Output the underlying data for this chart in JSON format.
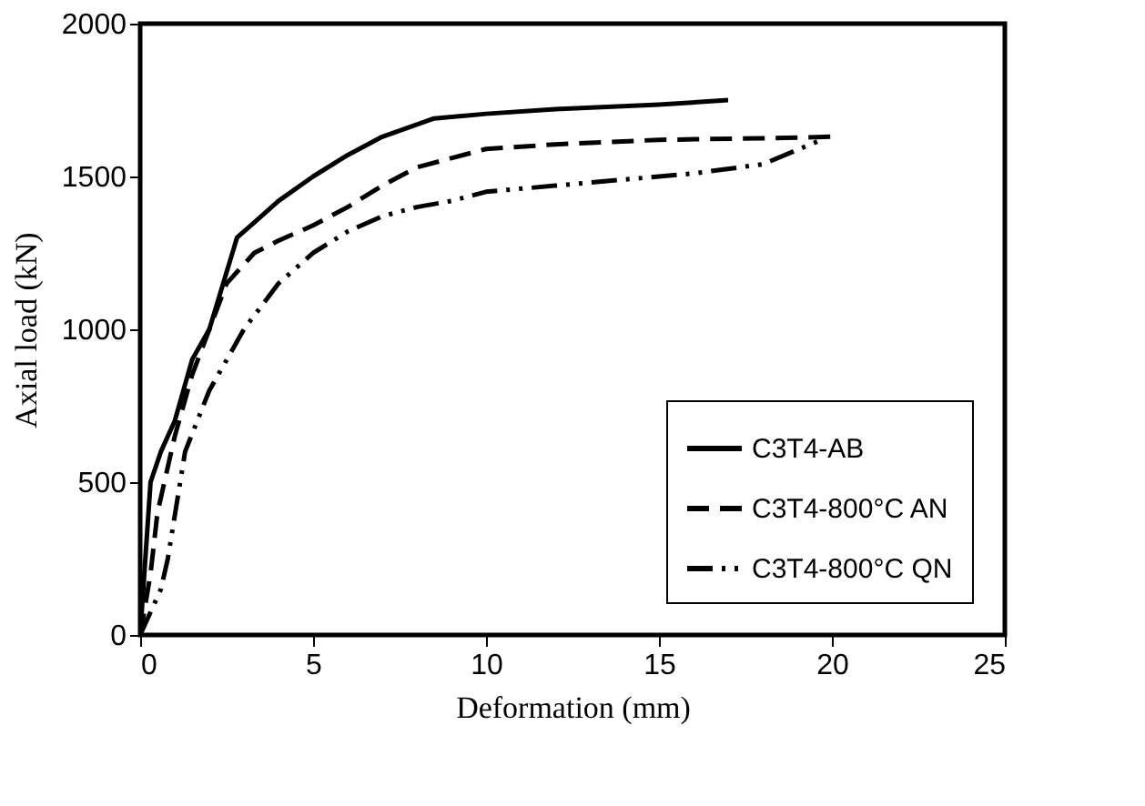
{
  "chart_data": {
    "type": "line",
    "xlabel": "Deformation (mm)",
    "ylabel": "Axial load (kN)",
    "xlim": [
      0,
      25
    ],
    "xticks": [
      0,
      5,
      10,
      15,
      20,
      25
    ],
    "ylim": [
      0,
      2000
    ],
    "yticks": [
      0,
      500,
      1000,
      1500,
      2000
    ],
    "grid": false,
    "legend": "bottom right",
    "marker": "none",
    "series": [
      {
        "name": "C3T4-AB",
        "color": "#000000",
        "line_style": "solid",
        "x": [
          0,
          0.15,
          0.3,
          0.6,
          1,
          1.5,
          2,
          2.8,
          3.2,
          4,
          5,
          6,
          7,
          8.5,
          10,
          12,
          15,
          17
        ],
        "values": [
          0,
          250,
          500,
          600,
          700,
          900,
          1000,
          1300,
          1340,
          1420,
          1500,
          1570,
          1630,
          1690,
          1705,
          1720,
          1735,
          1750
        ]
      },
      {
        "name": "C3T4-800°C AN",
        "color": "#000000",
        "line_style": "dashed",
        "x": [
          0,
          0.3,
          0.5,
          1,
          1.5,
          2,
          2.5,
          3.3,
          4,
          5,
          6,
          7,
          8,
          10,
          12,
          15,
          18,
          20
        ],
        "values": [
          0,
          200,
          400,
          650,
          850,
          1000,
          1150,
          1250,
          1290,
          1340,
          1400,
          1470,
          1530,
          1590,
          1605,
          1620,
          1625,
          1630
        ]
      },
      {
        "name": "C3T4-800°C QN",
        "color": "#000000",
        "line_style": "dashdot",
        "x": [
          0,
          0.6,
          0.8,
          1.3,
          2,
          3,
          4,
          5,
          6,
          7,
          8,
          9,
          10,
          12,
          14,
          16,
          18,
          19.7
        ],
        "values": [
          0,
          150,
          250,
          600,
          800,
          1000,
          1150,
          1250,
          1320,
          1370,
          1400,
          1420,
          1450,
          1470,
          1490,
          1510,
          1540,
          1620
        ]
      }
    ]
  }
}
